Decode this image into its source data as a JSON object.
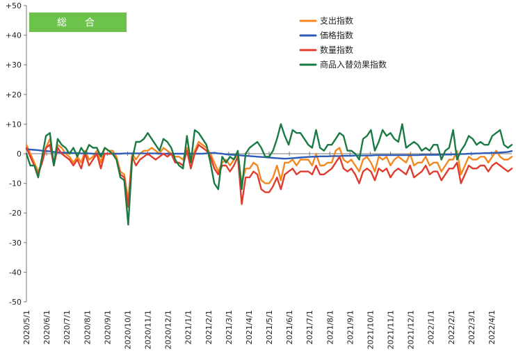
{
  "chart_data": {
    "type": "line",
    "title": "",
    "badge": "総　合",
    "xlabel": "",
    "ylabel": "",
    "ylim": [
      -50,
      50
    ],
    "yticks": [
      "+50",
      "+40",
      "+30",
      "+20",
      "+10",
      "0",
      "-10",
      "-20",
      "-30",
      "-40",
      "-50"
    ],
    "x_tick_labels": [
      "2020/5/1",
      "2020/6/1",
      "2020/7/1",
      "2020/8/1",
      "2020/9/1",
      "2020/10/1",
      "2020/11/1",
      "2020/12/1",
      "2021/1/1",
      "2021/2/1",
      "2021/3/1",
      "2021/4/1",
      "2021/5/1",
      "2021/6/1",
      "2021/7/1",
      "2021/8/1",
      "2021/9/1",
      "2021/10/1",
      "2021/11/1",
      "2021/12/1",
      "2022/1/1",
      "2022/2/1",
      "2022/3/1",
      "2022/4/1"
    ],
    "x_months_span": 24,
    "grid": false,
    "legend_position": "top-right",
    "series": [
      {
        "name": "支出指数",
        "color": "#f5871f",
        "values": [
          3,
          0,
          -3,
          -6,
          -3,
          2,
          5,
          -4,
          3,
          2,
          0,
          -1,
          -3,
          -1,
          -3,
          1,
          -2,
          -1,
          1,
          -3,
          2,
          1,
          1,
          -1,
          -6,
          -7,
          -16,
          0,
          -2,
          0,
          1,
          1,
          2,
          1,
          0,
          2,
          1,
          0,
          -1,
          -1,
          -2,
          2,
          -3,
          1,
          4,
          3,
          2,
          0,
          -3,
          -6,
          -3,
          -2,
          -4,
          -2,
          0,
          -10,
          -5,
          -5,
          -3,
          -4,
          -9,
          -10,
          -10,
          -8,
          -4,
          -9,
          -3,
          -3,
          -2,
          -4,
          -2,
          -2,
          -2,
          -4,
          0,
          -4,
          -4,
          -3,
          -3,
          1,
          2,
          -2,
          -3,
          -2,
          -4,
          -6,
          -2,
          -1,
          -3,
          -6,
          -1,
          -2,
          -1,
          -4,
          -2,
          -1,
          -2,
          -3,
          0,
          -4,
          -3,
          -3,
          -1,
          -4,
          -3,
          -3,
          -6,
          -4,
          -2,
          -2,
          1,
          -7,
          -4,
          -1,
          -2,
          -2,
          -1,
          -1,
          -3,
          -1,
          1,
          -1,
          -2,
          -2,
          -1
        ]
      },
      {
        "name": "価格指数",
        "color": "#2e5cb8",
        "values": [
          1.5,
          1.4,
          1.3,
          1.2,
          1.0,
          0.9,
          0.8,
          0.6,
          0.5,
          0.4,
          0.3,
          0.3,
          0.2,
          0.2,
          0.1,
          0.1,
          0.1,
          0.0,
          0.0,
          0.0,
          0.0,
          0.0,
          0.0,
          0.0,
          0.0,
          0.1,
          0.1,
          0.1,
          0.1,
          0.1,
          0.1,
          0.1,
          0.1,
          0.1,
          0.0,
          0.0,
          0.0,
          0.0,
          0.0,
          0.0,
          0.0,
          0.0,
          0.0,
          0.0,
          0.0,
          0.0,
          0.1,
          0.2,
          0.3,
          0.1,
          0.0,
          -0.2,
          -0.3,
          -0.4,
          -0.5,
          -0.6,
          -0.7,
          -0.8,
          -0.9,
          -1.0,
          -1.1,
          -1.2,
          -1.3,
          -1.4,
          -1.5,
          -1.6,
          -1.7,
          -1.6,
          -1.5,
          -1.4,
          -1.3,
          -1.2,
          -1.1,
          -1.0,
          -1.0,
          -0.9,
          -0.9,
          -0.9,
          -0.8,
          -0.8,
          -0.8,
          -0.7,
          -0.7,
          -0.7,
          -0.6,
          -0.6,
          -0.6,
          -0.6,
          -0.6,
          -0.5,
          -0.5,
          -0.5,
          -0.5,
          -0.5,
          -0.5,
          -0.5,
          -0.5,
          -0.5,
          -0.5,
          -0.5,
          -0.5,
          -0.4,
          -0.4,
          -0.4,
          -0.4,
          -0.4,
          -0.3,
          -0.3,
          -0.3,
          -0.2,
          -0.2,
          -0.1,
          -0.1,
          0.0,
          0.0,
          0.1,
          0.1,
          0.2,
          0.2,
          0.3,
          0.3,
          0.4,
          0.5,
          0.6,
          0.9
        ]
      },
      {
        "name": "数量指数",
        "color": "#e03c2e",
        "values": [
          2,
          -1,
          -4,
          -7,
          -3,
          2,
          3,
          -4,
          2,
          0,
          -1,
          -2,
          -4,
          -2,
          -5,
          0,
          -4,
          -2,
          0,
          -5,
          0,
          0,
          0,
          -2,
          -7,
          -8,
          -18,
          -1,
          -4,
          -2,
          -1,
          0,
          -1,
          -2,
          -1,
          0,
          -1,
          0,
          -3,
          -3,
          -4,
          1,
          -5,
          0,
          3,
          2,
          1,
          -1,
          -5,
          -7,
          -4,
          -4,
          -6,
          -4,
          -1,
          -17,
          -8,
          -8,
          -6,
          -7,
          -12,
          -13,
          -13,
          -11,
          -8,
          -12,
          -7,
          -6,
          -5,
          -7,
          -6,
          -6,
          -6,
          -7,
          -4,
          -7,
          -7,
          -6,
          -5,
          -3,
          -1,
          -5,
          -6,
          -5,
          -7,
          -10,
          -6,
          -5,
          -6,
          -9,
          -5,
          -6,
          -5,
          -8,
          -6,
          -5,
          -6,
          -7,
          -4,
          -8,
          -7,
          -6,
          -4,
          -7,
          -6,
          -6,
          -9,
          -7,
          -5,
          -5,
          -3,
          -10,
          -7,
          -4,
          -5,
          -5,
          -4,
          -4,
          -6,
          -4,
          -3,
          -4,
          -5,
          -6,
          -5
        ]
      },
      {
        "name": "商品入替効果指数",
        "color": "#1a7a44",
        "values": [
          0,
          -4,
          -4,
          -8,
          -1,
          6,
          7,
          -4,
          5,
          3,
          2,
          0,
          2,
          -1,
          2,
          0,
          3,
          2,
          2,
          -1,
          2,
          1,
          0,
          -2,
          -8,
          -9,
          -24,
          -2,
          4,
          4,
          5,
          7,
          5,
          3,
          1,
          5,
          4,
          2,
          -2,
          -4,
          -5,
          6,
          -3,
          8,
          7,
          5,
          3,
          -3,
          -10,
          -12,
          -1,
          -3,
          -1,
          -2,
          1,
          -12,
          0,
          2,
          3,
          4,
          2,
          -1,
          -1,
          1,
          5,
          10,
          6,
          3,
          8,
          7,
          7,
          5,
          3,
          2,
          8,
          2,
          1,
          3,
          3,
          5,
          7,
          6,
          1,
          1,
          0,
          -2,
          5,
          6,
          8,
          1,
          4,
          8,
          6,
          7,
          5,
          4,
          10,
          2,
          3,
          4,
          3,
          1,
          2,
          1,
          3,
          3,
          -2,
          1,
          2,
          8,
          -2,
          1,
          3,
          6,
          5,
          3,
          4,
          3,
          3,
          6,
          7,
          8,
          3,
          2,
          3
        ]
      }
    ]
  }
}
